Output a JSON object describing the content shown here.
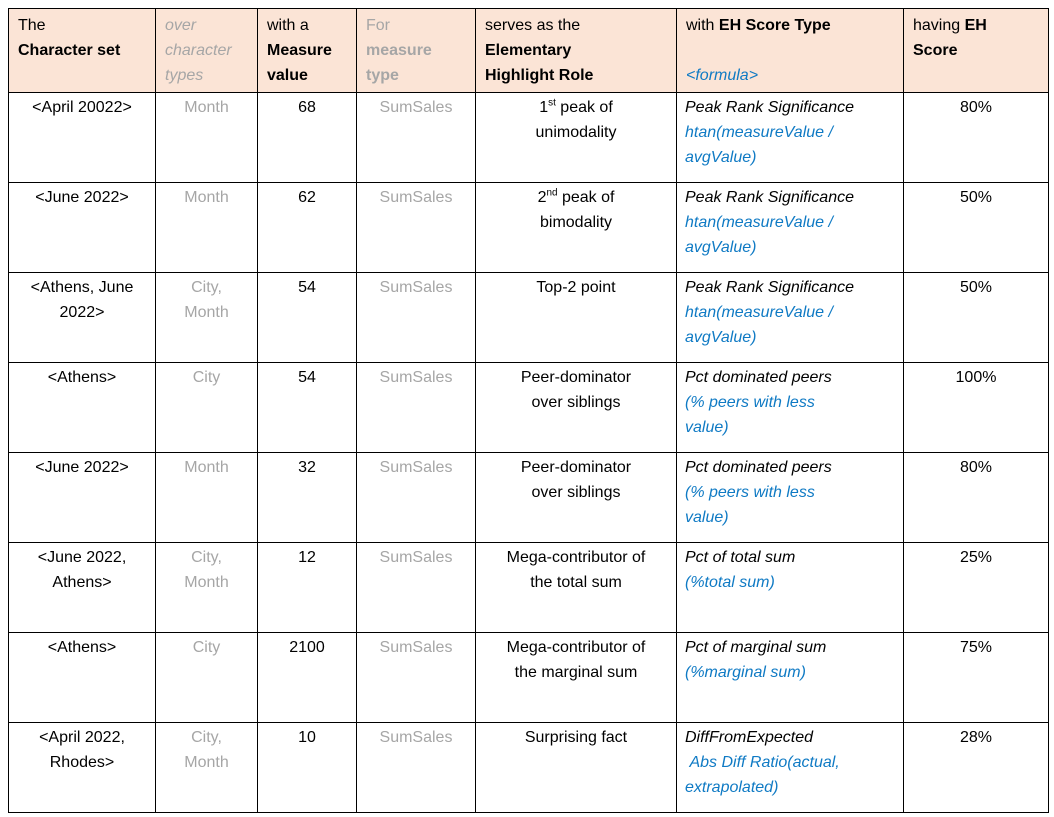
{
  "colors": {
    "header_background": "#FBE4D6",
    "muted_text": "#A6A6A6",
    "formula_blue": "#0F7AC4",
    "border": "#000000",
    "body_text": "#000000"
  },
  "table": {
    "header": {
      "cells": [
        {
          "name": "character-set",
          "segments": [
            {
              "text": "The\n"
            },
            {
              "text": "Character set",
              "c": "b"
            }
          ]
        },
        {
          "name": "character-types",
          "segments": [
            {
              "text": "over\ncharacter\ntypes",
              "c": "gi"
            }
          ]
        },
        {
          "name": "measure-value",
          "segments": [
            {
              "text": "with a\n"
            },
            {
              "text": "Measure\nvalue",
              "c": "b"
            }
          ]
        },
        {
          "name": "measure-type",
          "segments": [
            {
              "text": "For\n",
              "c": "g"
            },
            {
              "text": "measure\ntype",
              "c": "gb"
            }
          ]
        },
        {
          "name": "highlight-role",
          "segments": [
            {
              "text": "serves as the\n"
            },
            {
              "text": "Elementary\nHighlight Role",
              "c": "b"
            }
          ]
        },
        {
          "name": "eh-score-type",
          "segments": [
            {
              "text": "with "
            },
            {
              "text": "EH Score Type",
              "c": "b"
            },
            {
              "text": "\n\n"
            },
            {
              "text": "<formula>",
              "c": "blue-i"
            }
          ]
        },
        {
          "name": "eh-score",
          "segments": [
            {
              "text": "having "
            },
            {
              "text": "EH\nScore",
              "c": "b"
            }
          ]
        }
      ]
    },
    "rows": [
      {
        "character_set": "<April 20022>",
        "character_types": "Month",
        "measure_value": "68",
        "measure_type": "SumSales",
        "role": [
          {
            "text": "1"
          },
          {
            "text": "st",
            "sup": true
          },
          {
            "text": " peak of\nunimodality"
          }
        ],
        "score_type_name": "Peak Rank Significance",
        "score_type_formula": "htan(measureValue /\navgValue)",
        "eh_score": "80%"
      },
      {
        "character_set": "<June 2022>",
        "character_types": "Month",
        "measure_value": "62",
        "measure_type": "SumSales",
        "role": [
          {
            "text": "2"
          },
          {
            "text": "nd",
            "sup": true
          },
          {
            "text": " peak of\nbimodality"
          }
        ],
        "score_type_name": "Peak Rank Significance",
        "score_type_formula": "htan(measureValue /\navgValue)",
        "eh_score": "50%"
      },
      {
        "character_set": "<Athens, June\n2022>",
        "character_types": "City,\nMonth",
        "measure_value": "54",
        "measure_type": "SumSales",
        "role": [
          {
            "text": "Top-2 point"
          }
        ],
        "score_type_name": "Peak Rank Significance",
        "score_type_formula": "htan(measureValue /\navgValue)",
        "eh_score": "50%"
      },
      {
        "character_set": "<Athens>",
        "character_types": "City",
        "measure_value": "54",
        "measure_type": "SumSales",
        "role": [
          {
            "text": "Peer-dominator\nover siblings"
          }
        ],
        "score_type_name": "Pct dominated peers",
        "score_type_formula": "(% peers with less\nvalue)",
        "eh_score": "100%"
      },
      {
        "character_set": "<June 2022>",
        "character_types": "Month",
        "measure_value": "32",
        "measure_type": "SumSales",
        "role": [
          {
            "text": "Peer-dominator\nover siblings"
          }
        ],
        "score_type_name": "Pct dominated peers",
        "score_type_formula": "(% peers with less\nvalue)",
        "eh_score": "80%"
      },
      {
        "character_set": "<June 2022,\nAthens>",
        "character_types": "City,\nMonth",
        "measure_value": "12",
        "measure_type": "SumSales",
        "role": [
          {
            "text": "Mega-contributor of\nthe total sum"
          }
        ],
        "score_type_name": "Pct of total sum",
        "score_type_formula": "(%total sum)",
        "eh_score": "25%"
      },
      {
        "character_set": "<Athens>",
        "character_types": "City",
        "measure_value": "2100",
        "measure_type": "SumSales",
        "role": [
          {
            "text": "Mega-contributor of\nthe marginal sum"
          }
        ],
        "score_type_name": "Pct of marginal sum",
        "score_type_formula": "(%marginal sum)",
        "eh_score": "75%"
      },
      {
        "character_set": "<April 2022,\nRhodes>",
        "character_types": "City,\nMonth",
        "measure_value": "10",
        "measure_type": "SumSales",
        "role": [
          {
            "text": "Surprising fact"
          }
        ],
        "score_type_name": "DiffFromExpected",
        "score_type_formula": " Abs Diff Ratio(actual,\nextrapolated)",
        "eh_score": "28%"
      }
    ]
  }
}
